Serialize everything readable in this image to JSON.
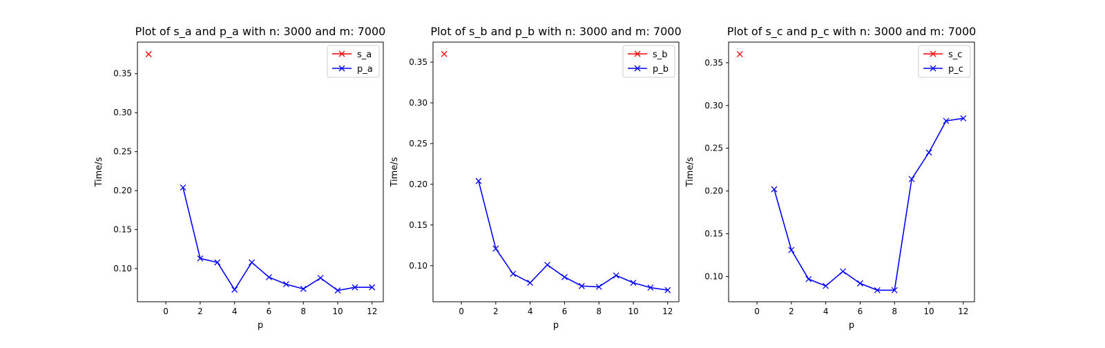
{
  "chart_data": [
    {
      "type": "line",
      "title": "Plot of s_a and p_a with n: 3000 and m: 7000",
      "xlabel": "p",
      "ylabel": "Time/s",
      "xlim": [
        -1.65,
        12.65
      ],
      "ylim": [
        0.0575,
        0.3905
      ],
      "xticks": [
        0,
        2,
        4,
        6,
        8,
        10,
        12
      ],
      "yticks": [
        0.1,
        0.15,
        0.2,
        0.25,
        0.3,
        0.35
      ],
      "ytick_labels": [
        "0.10",
        "0.15",
        "0.20",
        "0.25",
        "0.30",
        "0.35"
      ],
      "legend": "top-right",
      "series": [
        {
          "name": "s_a",
          "color": "#ff0000",
          "marker": "x",
          "line": false,
          "x": [
            -1
          ],
          "y": [
            0.375
          ]
        },
        {
          "name": "p_a",
          "color": "#0000ff",
          "marker": "x",
          "line": true,
          "x": [
            1,
            2,
            3,
            4,
            5,
            6,
            7,
            8,
            9,
            10,
            11,
            12
          ],
          "y": [
            0.204,
            0.113,
            0.108,
            0.073,
            0.108,
            0.089,
            0.08,
            0.074,
            0.088,
            0.072,
            0.076,
            0.076
          ]
        }
      ]
    },
    {
      "type": "line",
      "title": "Plot of s_b and p_b with n: 3000 and m: 7000",
      "xlabel": "p",
      "ylabel": "Time/s",
      "xlim": [
        -1.65,
        12.65
      ],
      "ylim": [
        0.0557,
        0.3746
      ],
      "xticks": [
        0,
        2,
        4,
        6,
        8,
        10,
        12
      ],
      "yticks": [
        0.1,
        0.15,
        0.2,
        0.25,
        0.3,
        0.35
      ],
      "ytick_labels": [
        "0.10",
        "0.15",
        "0.20",
        "0.25",
        "0.30",
        "0.35"
      ],
      "legend": "top-right",
      "series": [
        {
          "name": "s_b",
          "color": "#ff0000",
          "marker": "x",
          "line": false,
          "x": [
            -1
          ],
          "y": [
            0.36
          ]
        },
        {
          "name": "p_b",
          "color": "#0000ff",
          "marker": "x",
          "line": true,
          "x": [
            1,
            2,
            3,
            4,
            5,
            6,
            7,
            8,
            9,
            10,
            11,
            12
          ],
          "y": [
            0.204,
            0.121,
            0.09,
            0.079,
            0.101,
            0.086,
            0.075,
            0.074,
            0.088,
            0.079,
            0.073,
            0.07
          ]
        }
      ]
    },
    {
      "type": "line",
      "title": "Plot of s_c and p_c with n: 3000 and m: 7000",
      "xlabel": "p",
      "ylabel": "Time/s",
      "xlim": [
        -1.65,
        12.65
      ],
      "ylim": [
        0.0705,
        0.3741
      ],
      "xticks": [
        0,
        2,
        4,
        6,
        8,
        10,
        12
      ],
      "yticks": [
        0.1,
        0.15,
        0.2,
        0.25,
        0.3,
        0.35
      ],
      "ytick_labels": [
        "0.10",
        "0.15",
        "0.20",
        "0.25",
        "0.30",
        "0.35"
      ],
      "legend": "top-right",
      "series": [
        {
          "name": "s_c",
          "color": "#ff0000",
          "marker": "x",
          "line": false,
          "x": [
            -1
          ],
          "y": [
            0.36
          ]
        },
        {
          "name": "p_c",
          "color": "#0000ff",
          "marker": "x",
          "line": true,
          "x": [
            1,
            2,
            3,
            4,
            5,
            6,
            7,
            8,
            9,
            10,
            11,
            12
          ],
          "y": [
            0.202,
            0.131,
            0.097,
            0.089,
            0.106,
            0.092,
            0.084,
            0.084,
            0.214,
            0.245,
            0.282,
            0.285
          ]
        }
      ]
    }
  ]
}
